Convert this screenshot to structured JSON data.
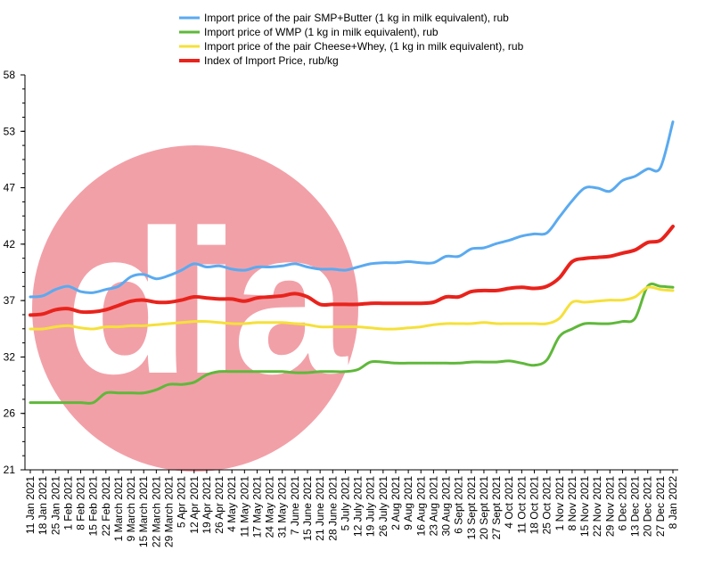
{
  "chart_data": {
    "type": "line",
    "title": "",
    "xlabel": "",
    "ylabel": "",
    "ylim": [
      21,
      58
    ],
    "yticks": [
      21,
      26,
      32,
      37,
      42,
      47,
      53,
      58
    ],
    "grid": false,
    "legend_position": "top",
    "watermark": {
      "text": "dia",
      "circle_color": "#f2a0a8"
    },
    "categories": [
      "11 Jan 2021",
      "18 Jan 2021",
      "25 Jan 2021",
      "1 Feb 2021",
      "8 Feb 2021",
      "15 Feb 2021",
      "22 Feb 2021",
      "1 March 2021",
      "9 March 2021",
      "15 March 2021",
      "22 March 2021",
      "29 March 2021",
      "5 Apr 2021",
      "12 Apr 2021",
      "19 Apr 2021",
      "26 Apr 2021",
      "4 May 2021",
      "11 May 2021",
      "17 May 2021",
      "24 May 2021",
      "31 May 2021",
      "7 June 2021",
      "15 June 2021",
      "21 June 2021",
      "28 June 2021",
      "5 July 2021",
      "12 July 2021",
      "19 July 2021",
      "26 July 2021",
      "2 Aug 2021",
      "9 Aug 2021",
      "16 Aug 2021",
      "23 Aug 2021",
      "30 Aug 2021",
      "6 Sept 2021",
      "13 Sept 2021",
      "20 Sept 2021",
      "27 Sept 2021",
      "4 Oct 2021",
      "11 Oct 2021",
      "18 Oct 2021",
      "25 Oct 2021",
      "1 Nov 2021",
      "8 Nov 2021",
      "15 Nov 2021",
      "22 Nov 2021",
      "29 Nov 2021",
      "6 Dec 2021",
      "13 Dec 2021",
      "20 Dec 2021",
      "27 Dec 2021",
      "8 Jan 2022"
    ],
    "series": [
      {
        "name": "Import price of the pair SMP+Butter (1 kg in milk equivalent), rub",
        "color": "#5aaaf0",
        "width": 3,
        "values": [
          37.2,
          37.3,
          37.9,
          38.2,
          37.7,
          37.6,
          37.9,
          38.2,
          39.1,
          39.3,
          38.9,
          39.2,
          39.7,
          40.3,
          40.0,
          40.1,
          39.8,
          39.7,
          40.0,
          40.0,
          40.1,
          40.3,
          40.0,
          39.8,
          39.8,
          39.7,
          40.0,
          40.3,
          40.4,
          40.4,
          40.5,
          40.4,
          40.4,
          41.0,
          41.0,
          41.7,
          41.8,
          42.2,
          42.5,
          42.9,
          43.1,
          43.2,
          44.7,
          46.2,
          47.4,
          47.4,
          47.1,
          48.1,
          48.5,
          49.2,
          49.3,
          53.6
        ]
      },
      {
        "name": "Import price of WMP (1 kg in milk equivalent), rub",
        "color": "#5fb83a",
        "width": 3,
        "values": [
          27.3,
          27.3,
          27.3,
          27.3,
          27.3,
          27.3,
          28.2,
          28.2,
          28.2,
          28.2,
          28.5,
          29.0,
          29.0,
          29.2,
          29.9,
          30.2,
          30.2,
          30.2,
          30.2,
          30.2,
          30.2,
          30.1,
          30.1,
          30.2,
          30.2,
          30.2,
          30.4,
          31.1,
          31.1,
          31.0,
          31.0,
          31.0,
          31.0,
          31.0,
          31.0,
          31.1,
          31.1,
          31.1,
          31.2,
          31.0,
          30.8,
          31.3,
          33.5,
          34.2,
          34.7,
          34.7,
          34.7,
          34.9,
          35.2,
          38.2,
          38.2,
          38.1
        ]
      },
      {
        "name": "Import price of the pair Cheese+Whey,  (1 kg in milk equivalent), rub",
        "color": "#f5e03a",
        "width": 3,
        "values": [
          34.2,
          34.2,
          34.4,
          34.5,
          34.3,
          34.2,
          34.4,
          34.4,
          34.5,
          34.5,
          34.6,
          34.7,
          34.8,
          34.9,
          34.9,
          34.8,
          34.7,
          34.7,
          34.8,
          34.8,
          34.8,
          34.7,
          34.6,
          34.4,
          34.4,
          34.4,
          34.4,
          34.3,
          34.2,
          34.2,
          34.3,
          34.4,
          34.6,
          34.7,
          34.7,
          34.7,
          34.8,
          34.7,
          34.7,
          34.7,
          34.7,
          34.7,
          35.2,
          36.7,
          36.7,
          36.8,
          36.9,
          36.9,
          37.2,
          38.1,
          37.9,
          37.8
        ]
      },
      {
        "name": "Index of Import Price, rub/kg",
        "color": "#e8231c",
        "width": 4,
        "values": [
          35.5,
          35.6,
          36.0,
          36.1,
          35.8,
          35.8,
          36.0,
          36.4,
          36.8,
          36.9,
          36.7,
          36.7,
          36.9,
          37.2,
          37.1,
          37.0,
          37.0,
          36.8,
          37.1,
          37.2,
          37.3,
          37.5,
          37.2,
          36.5,
          36.5,
          36.5,
          36.5,
          36.6,
          36.6,
          36.6,
          36.6,
          36.6,
          36.7,
          37.2,
          37.2,
          37.7,
          37.8,
          37.8,
          38.0,
          38.1,
          38.0,
          38.2,
          39.0,
          40.5,
          40.8,
          40.9,
          41.0,
          41.3,
          41.6,
          42.3,
          42.5,
          43.8
        ]
      }
    ]
  }
}
